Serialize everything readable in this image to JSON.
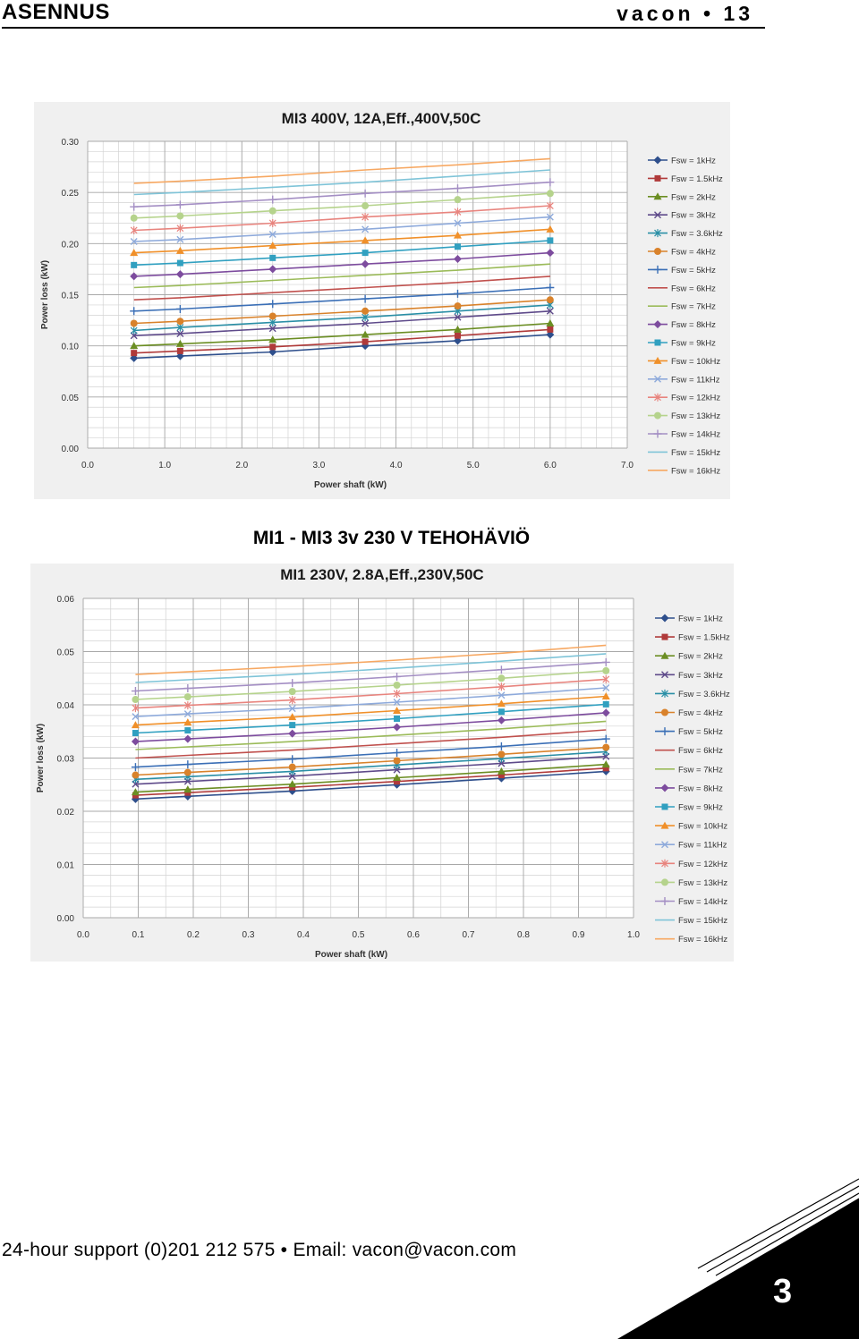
{
  "header": {
    "left": "ASENNUS",
    "right": "vacon • 13"
  },
  "section_title": "MI1 - MI3 3v 230 V TEHOHÄVIÖ",
  "footer": {
    "support": "24-hour support (0)201 212 575 • Email: vacon@vacon.com",
    "page_number": "3"
  },
  "chart_data": [
    {
      "type": "line",
      "title": "MI3 400V, 12A,Eff.,400V,50C",
      "xlabel": "Power shaft (kW)",
      "ylabel": "Power loss (kW)",
      "xlim": [
        0,
        7
      ],
      "ylim": [
        0,
        0.3
      ],
      "xticks": [
        "0.0",
        "1.0",
        "2.0",
        "3.0",
        "4.0",
        "5.0",
        "6.0",
        "7.0"
      ],
      "yticks": [
        "0.00",
        "0.05",
        "0.10",
        "0.15",
        "0.20",
        "0.25",
        "0.30"
      ],
      "grid": true,
      "legend": "right",
      "x": [
        0.6,
        1.2,
        2.4,
        3.6,
        4.8,
        6.0
      ],
      "series": [
        {
          "name": "Fsw = 1kHz",
          "color": "#2e4f8c",
          "marker": "diamond",
          "values": [
            0.088,
            0.09,
            0.094,
            0.1,
            0.105,
            0.111
          ]
        },
        {
          "name": "Fsw = 1.5kHz",
          "color": "#b03a3a",
          "marker": "square",
          "values": [
            0.093,
            0.095,
            0.099,
            0.104,
            0.11,
            0.116
          ]
        },
        {
          "name": "Fsw = 2kHz",
          "color": "#6b8e23",
          "marker": "triangle",
          "values": [
            0.1,
            0.102,
            0.106,
            0.111,
            0.116,
            0.122
          ]
        },
        {
          "name": "Fsw = 3kHz",
          "color": "#5e4a8a",
          "marker": "x",
          "values": [
            0.11,
            0.112,
            0.117,
            0.122,
            0.128,
            0.134
          ]
        },
        {
          "name": "Fsw = 3.6kHz",
          "color": "#2a8fa6",
          "marker": "star",
          "values": [
            0.115,
            0.118,
            0.123,
            0.128,
            0.134,
            0.14
          ]
        },
        {
          "name": "Fsw = 4kHz",
          "color": "#d9822b",
          "marker": "circle",
          "values": [
            0.122,
            0.124,
            0.129,
            0.134,
            0.139,
            0.145
          ]
        },
        {
          "name": "Fsw = 5kHz",
          "color": "#3b6fb6",
          "marker": "plus",
          "values": [
            0.134,
            0.136,
            0.141,
            0.146,
            0.151,
            0.157
          ]
        },
        {
          "name": "Fsw = 6kHz",
          "color": "#c0504d",
          "marker": "none",
          "values": [
            0.145,
            0.147,
            0.152,
            0.157,
            0.162,
            0.168
          ]
        },
        {
          "name": "Fsw = 7kHz",
          "color": "#9bbb59",
          "marker": "none",
          "values": [
            0.157,
            0.159,
            0.164,
            0.169,
            0.174,
            0.18
          ]
        },
        {
          "name": "Fsw = 8kHz",
          "color": "#7d4c9e",
          "marker": "diamond",
          "values": [
            0.168,
            0.17,
            0.175,
            0.18,
            0.185,
            0.191
          ]
        },
        {
          "name": "Fsw = 9kHz",
          "color": "#31a0c0",
          "marker": "square",
          "values": [
            0.179,
            0.181,
            0.186,
            0.191,
            0.197,
            0.203
          ]
        },
        {
          "name": "Fsw = 10kHz",
          "color": "#f0902a",
          "marker": "triangle",
          "values": [
            0.191,
            0.193,
            0.198,
            0.203,
            0.208,
            0.214
          ]
        },
        {
          "name": "Fsw = 11kHz",
          "color": "#8eaadb",
          "marker": "x",
          "values": [
            0.202,
            0.204,
            0.209,
            0.214,
            0.22,
            0.226
          ]
        },
        {
          "name": "Fsw = 12kHz",
          "color": "#e8847e",
          "marker": "star",
          "values": [
            0.213,
            0.215,
            0.22,
            0.226,
            0.231,
            0.237
          ]
        },
        {
          "name": "Fsw = 13kHz",
          "color": "#b5d38c",
          "marker": "circle",
          "values": [
            0.225,
            0.227,
            0.232,
            0.237,
            0.243,
            0.249
          ]
        },
        {
          "name": "Fsw = 14kHz",
          "color": "#a48fc4",
          "marker": "plus",
          "values": [
            0.236,
            0.238,
            0.243,
            0.249,
            0.254,
            0.26
          ]
        },
        {
          "name": "Fsw = 15kHz",
          "color": "#7fc4d8",
          "marker": "none",
          "values": [
            0.248,
            0.25,
            0.255,
            0.26,
            0.266,
            0.272
          ]
        },
        {
          "name": "Fsw = 16kHz",
          "color": "#f7a862",
          "marker": "none",
          "values": [
            0.259,
            0.261,
            0.266,
            0.272,
            0.277,
            0.283
          ]
        }
      ]
    },
    {
      "type": "line",
      "title": "MI1 230V, 2.8A,Eff.,230V,50C",
      "xlabel": "Power shaft (kW)",
      "ylabel": "Power loss (kW)",
      "xlim": [
        0,
        1
      ],
      "ylim": [
        0,
        0.06
      ],
      "xticks": [
        "0.0",
        "0.1",
        "0.2",
        "0.3",
        "0.4",
        "0.5",
        "0.6",
        "0.7",
        "0.8",
        "0.9",
        "1.0"
      ],
      "yticks": [
        "0.00",
        "0.01",
        "0.02",
        "0.03",
        "0.04",
        "0.05",
        "0.06"
      ],
      "grid": true,
      "legend": "right",
      "x": [
        0.095,
        0.19,
        0.38,
        0.57,
        0.76,
        0.95
      ],
      "series": [
        {
          "name": "Fsw = 1kHz",
          "color": "#2e4f8c",
          "marker": "diamond",
          "values": [
            0.0223,
            0.0228,
            0.0238,
            0.025,
            0.0262,
            0.0275
          ]
        },
        {
          "name": "Fsw = 1.5kHz",
          "color": "#b03a3a",
          "marker": "square",
          "values": [
            0.023,
            0.0235,
            0.0245,
            0.0256,
            0.0268,
            0.0281
          ]
        },
        {
          "name": "Fsw = 2kHz",
          "color": "#6b8e23",
          "marker": "triangle",
          "values": [
            0.0236,
            0.0241,
            0.0251,
            0.0263,
            0.0275,
            0.0288
          ]
        },
        {
          "name": "Fsw = 3kHz",
          "color": "#5e4a8a",
          "marker": "x",
          "values": [
            0.0251,
            0.0256,
            0.0266,
            0.0278,
            0.029,
            0.0303
          ]
        },
        {
          "name": "Fsw = 3.6kHz",
          "color": "#2a8fa6",
          "marker": "star",
          "values": [
            0.026,
            0.0265,
            0.0275,
            0.0287,
            0.0299,
            0.0312
          ]
        },
        {
          "name": "Fsw = 4kHz",
          "color": "#d9822b",
          "marker": "circle",
          "values": [
            0.0268,
            0.0273,
            0.0283,
            0.0295,
            0.0307,
            0.032
          ]
        },
        {
          "name": "Fsw = 5kHz",
          "color": "#3b6fb6",
          "marker": "plus",
          "values": [
            0.0283,
            0.0288,
            0.0298,
            0.031,
            0.0322,
            0.0336
          ]
        },
        {
          "name": "Fsw = 6kHz",
          "color": "#c0504d",
          "marker": "none",
          "values": [
            0.03,
            0.0305,
            0.0315,
            0.0327,
            0.0339,
            0.0353
          ]
        },
        {
          "name": "Fsw = 7kHz",
          "color": "#9bbb59",
          "marker": "none",
          "values": [
            0.0316,
            0.0321,
            0.0331,
            0.0343,
            0.0355,
            0.0369
          ]
        },
        {
          "name": "Fsw = 8kHz",
          "color": "#7d4c9e",
          "marker": "diamond",
          "values": [
            0.0331,
            0.0336,
            0.0346,
            0.0358,
            0.0371,
            0.0385
          ]
        },
        {
          "name": "Fsw = 9kHz",
          "color": "#31a0c0",
          "marker": "square",
          "values": [
            0.0347,
            0.0352,
            0.0362,
            0.0374,
            0.0387,
            0.0401
          ]
        },
        {
          "name": "Fsw = 10kHz",
          "color": "#f0902a",
          "marker": "triangle",
          "values": [
            0.0362,
            0.0367,
            0.0377,
            0.0389,
            0.0402,
            0.0416
          ]
        },
        {
          "name": "Fsw = 11kHz",
          "color": "#8eaadb",
          "marker": "x",
          "values": [
            0.0378,
            0.0383,
            0.0393,
            0.0405,
            0.0418,
            0.0432
          ]
        },
        {
          "name": "Fsw = 12kHz",
          "color": "#e8847e",
          "marker": "star",
          "values": [
            0.0394,
            0.0399,
            0.0409,
            0.0421,
            0.0434,
            0.0448
          ]
        },
        {
          "name": "Fsw = 13kHz",
          "color": "#b5d38c",
          "marker": "circle",
          "values": [
            0.041,
            0.0415,
            0.0425,
            0.0437,
            0.045,
            0.0464
          ]
        },
        {
          "name": "Fsw = 14kHz",
          "color": "#a48fc4",
          "marker": "plus",
          "values": [
            0.0426,
            0.0431,
            0.0441,
            0.0453,
            0.0466,
            0.048
          ]
        },
        {
          "name": "Fsw = 15kHz",
          "color": "#7fc4d8",
          "marker": "none",
          "values": [
            0.0442,
            0.0447,
            0.0457,
            0.0469,
            0.0482,
            0.0496
          ]
        },
        {
          "name": "Fsw = 16kHz",
          "color": "#f7a862",
          "marker": "none",
          "values": [
            0.0457,
            0.0462,
            0.0472,
            0.0484,
            0.0497,
            0.0512
          ]
        }
      ]
    }
  ]
}
